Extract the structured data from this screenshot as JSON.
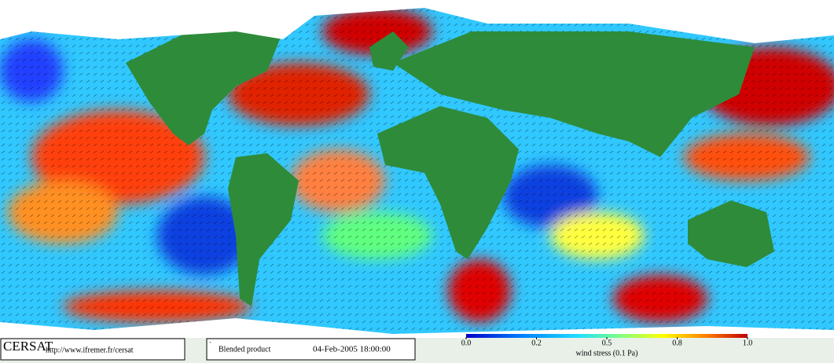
{
  "logo": "CERSAT",
  "url": "http://www.ifremer.fr/cersat",
  "mark": "`",
  "product": "Blended product",
  "datetime": "04-Feb-2005 18:00:00",
  "colorbar": {
    "title": "wind stress (0.1 Pa)",
    "ticks": [
      {
        "value": 0,
        "label": "0.0"
      },
      0.2,
      0.5,
      0.8,
      {
        "value": 1,
        "label": "1.0"
      }
    ]
  }
}
